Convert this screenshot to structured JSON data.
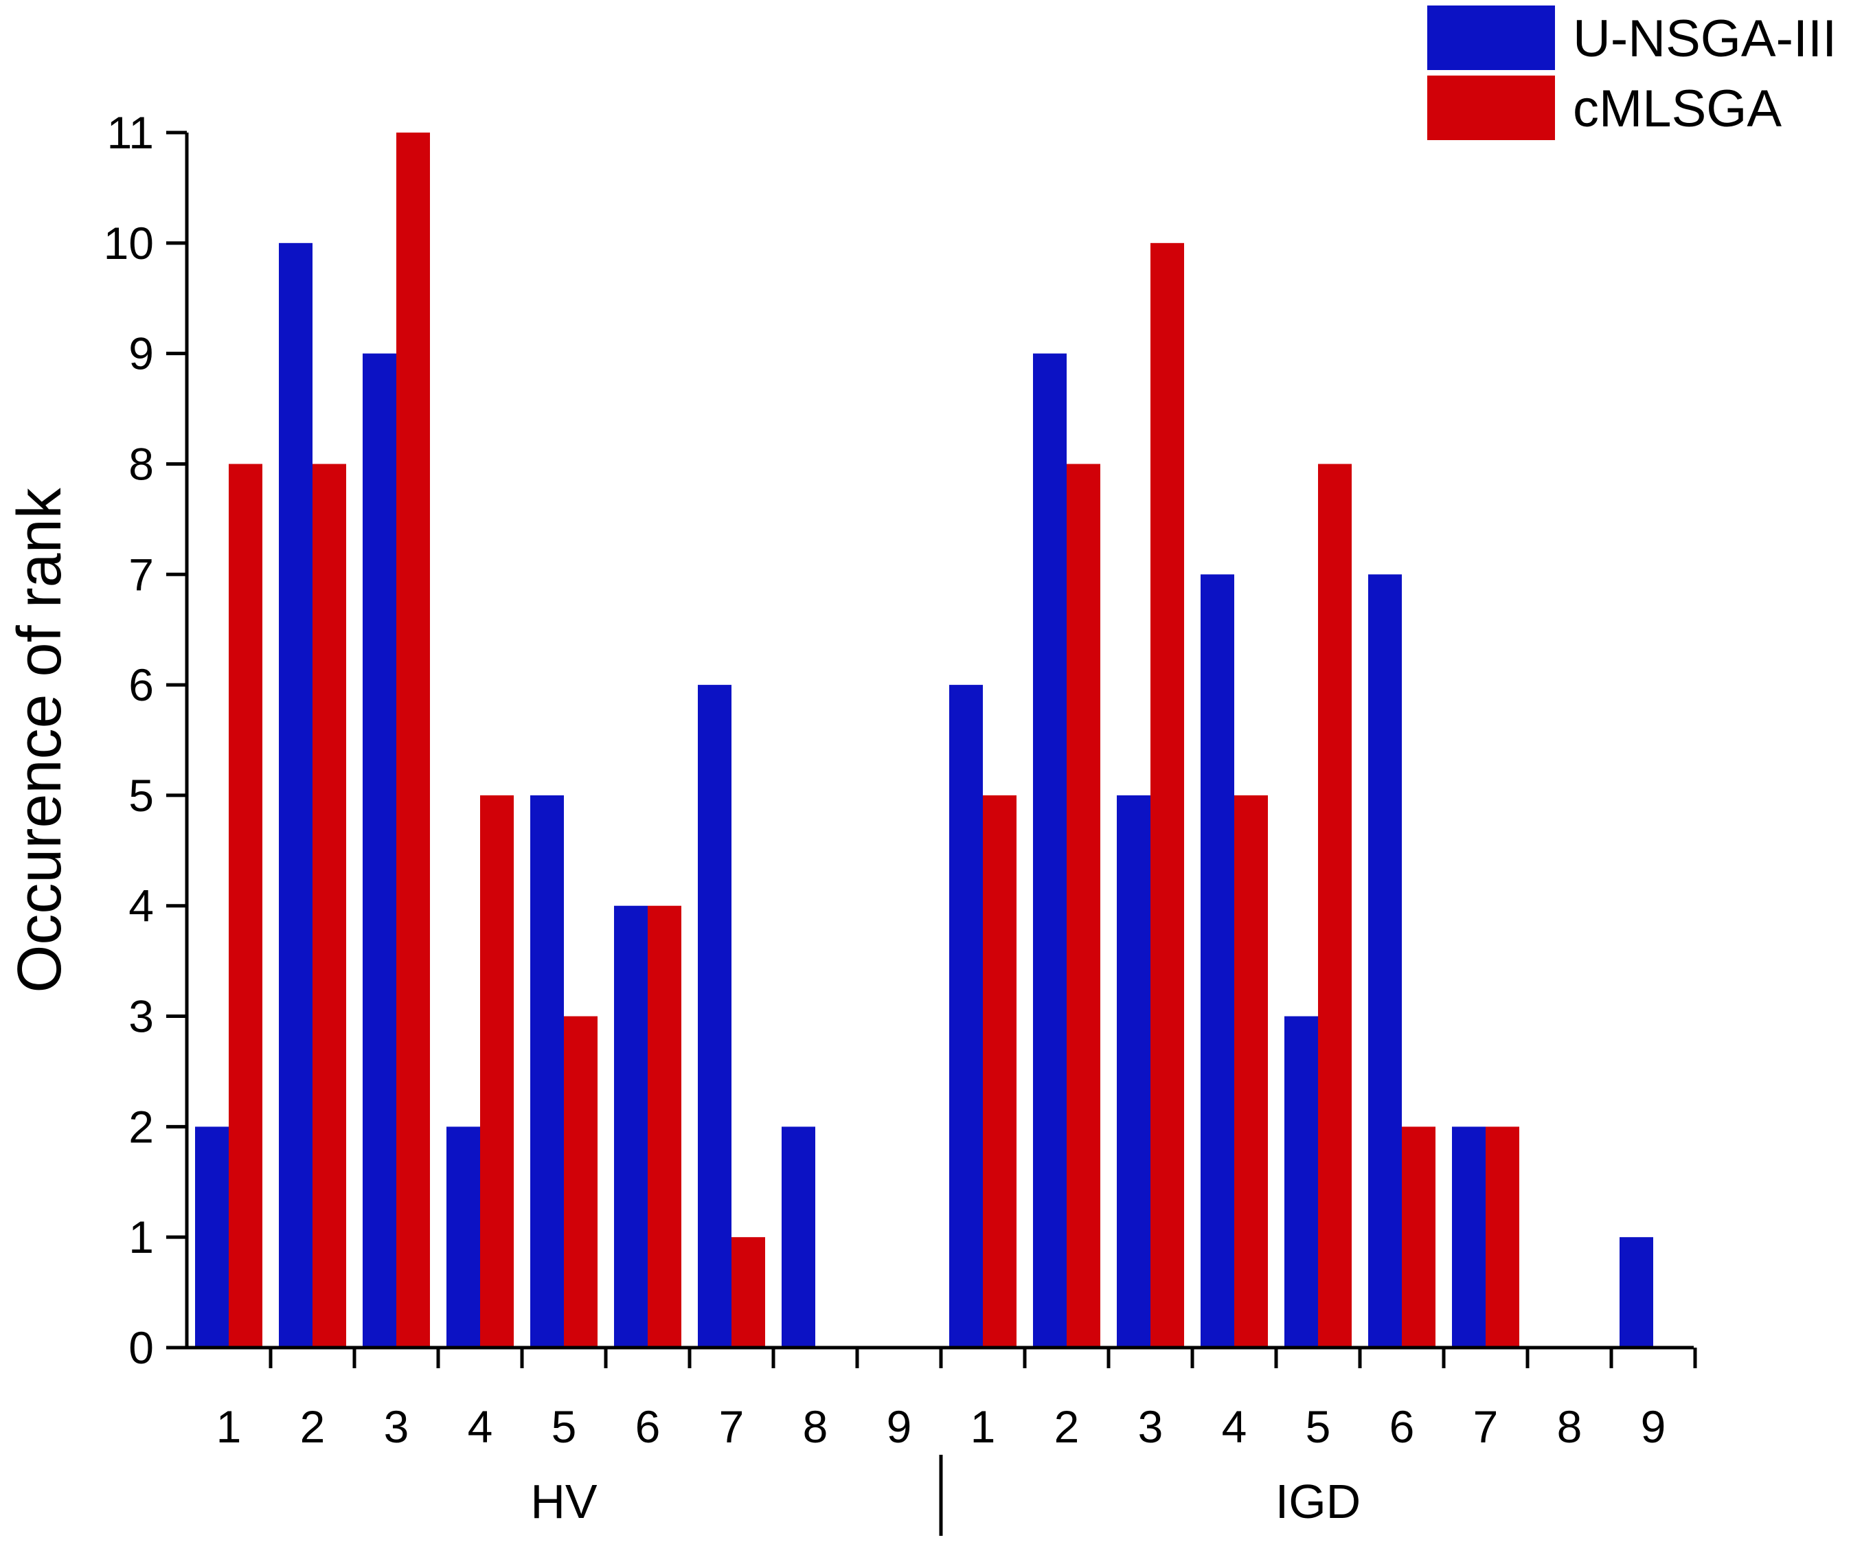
{
  "chart_data": {
    "type": "bar",
    "ylabel": "Occurence of rank",
    "xlabel": "",
    "ylim": [
      0,
      11
    ],
    "yticks": [
      0,
      1,
      2,
      3,
      4,
      5,
      6,
      7,
      8,
      9,
      10,
      11
    ],
    "groups": [
      "HV",
      "IGD"
    ],
    "categories": [
      "1",
      "2",
      "3",
      "4",
      "5",
      "6",
      "7",
      "8",
      "9",
      "1",
      "2",
      "3",
      "4",
      "5",
      "6",
      "7",
      "8",
      "9"
    ],
    "series": [
      {
        "name": "U-NSGA-III",
        "color": "#0c12c4",
        "values": [
          2,
          10,
          9,
          2,
          5,
          4,
          6,
          2,
          0,
          6,
          9,
          5,
          7,
          3,
          7,
          2,
          0,
          1
        ]
      },
      {
        "name": "cMLSGA",
        "color": "#d10108",
        "values": [
          8,
          8,
          11,
          5,
          3,
          4,
          1,
          0,
          0,
          5,
          8,
          10,
          5,
          8,
          2,
          2,
          0,
          0
        ]
      }
    ],
    "legend": {
      "position": "top-right"
    },
    "grid": false
  }
}
